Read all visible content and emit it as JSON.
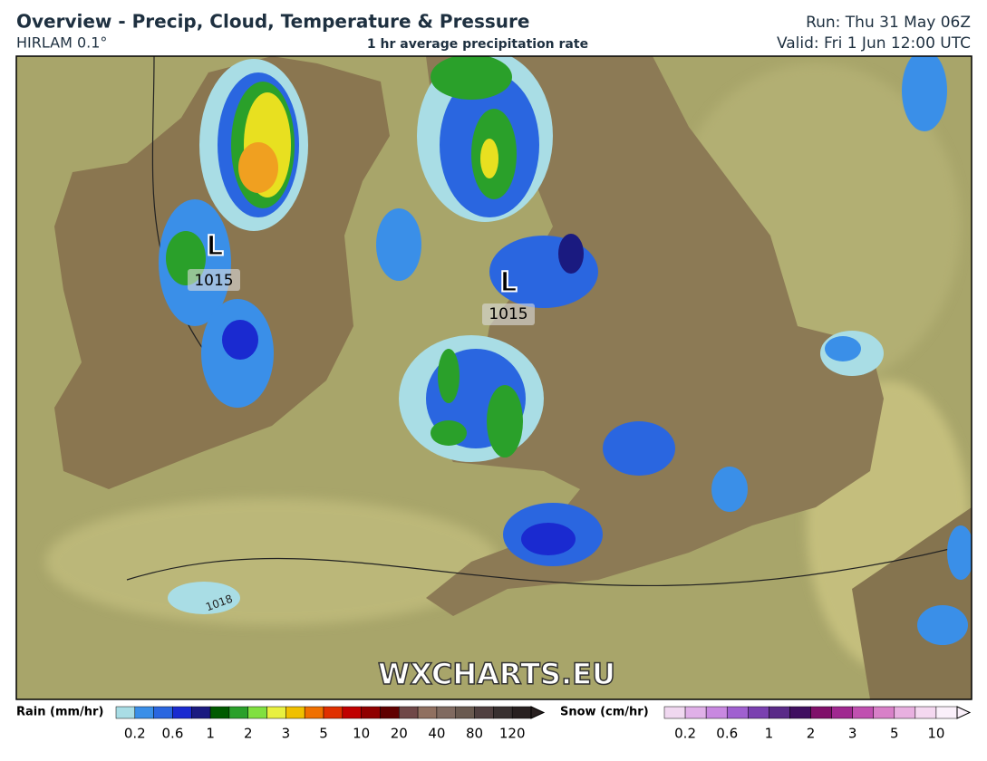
{
  "header": {
    "title": "Overview - Precip, Cloud, Temperature & Pressure",
    "model": "HIRLAM 0.1°",
    "subtitle": "1 hr average precipitation rate",
    "run": "Run: Thu 31 May 06Z",
    "valid": "Valid: Fri 1 Jun 12:00 UTC"
  },
  "map": {
    "pressure_labels": [
      {
        "symbol": "L",
        "value": "1015"
      },
      {
        "symbol": "L",
        "value": "1015"
      }
    ],
    "isobar_label": "1018",
    "watermark": "WXCHARTS.EU"
  },
  "legend": {
    "rain": {
      "title": "Rain (mm/hr)",
      "ticks": [
        "0.2",
        "0.6",
        "1",
        "2",
        "3",
        "5",
        "10",
        "20",
        "40",
        "80",
        "120"
      ]
    },
    "snow": {
      "title": "Snow (cm/hr)",
      "ticks": [
        "0.2",
        "0.6",
        "1",
        "2",
        "3",
        "5",
        "10"
      ]
    }
  }
}
